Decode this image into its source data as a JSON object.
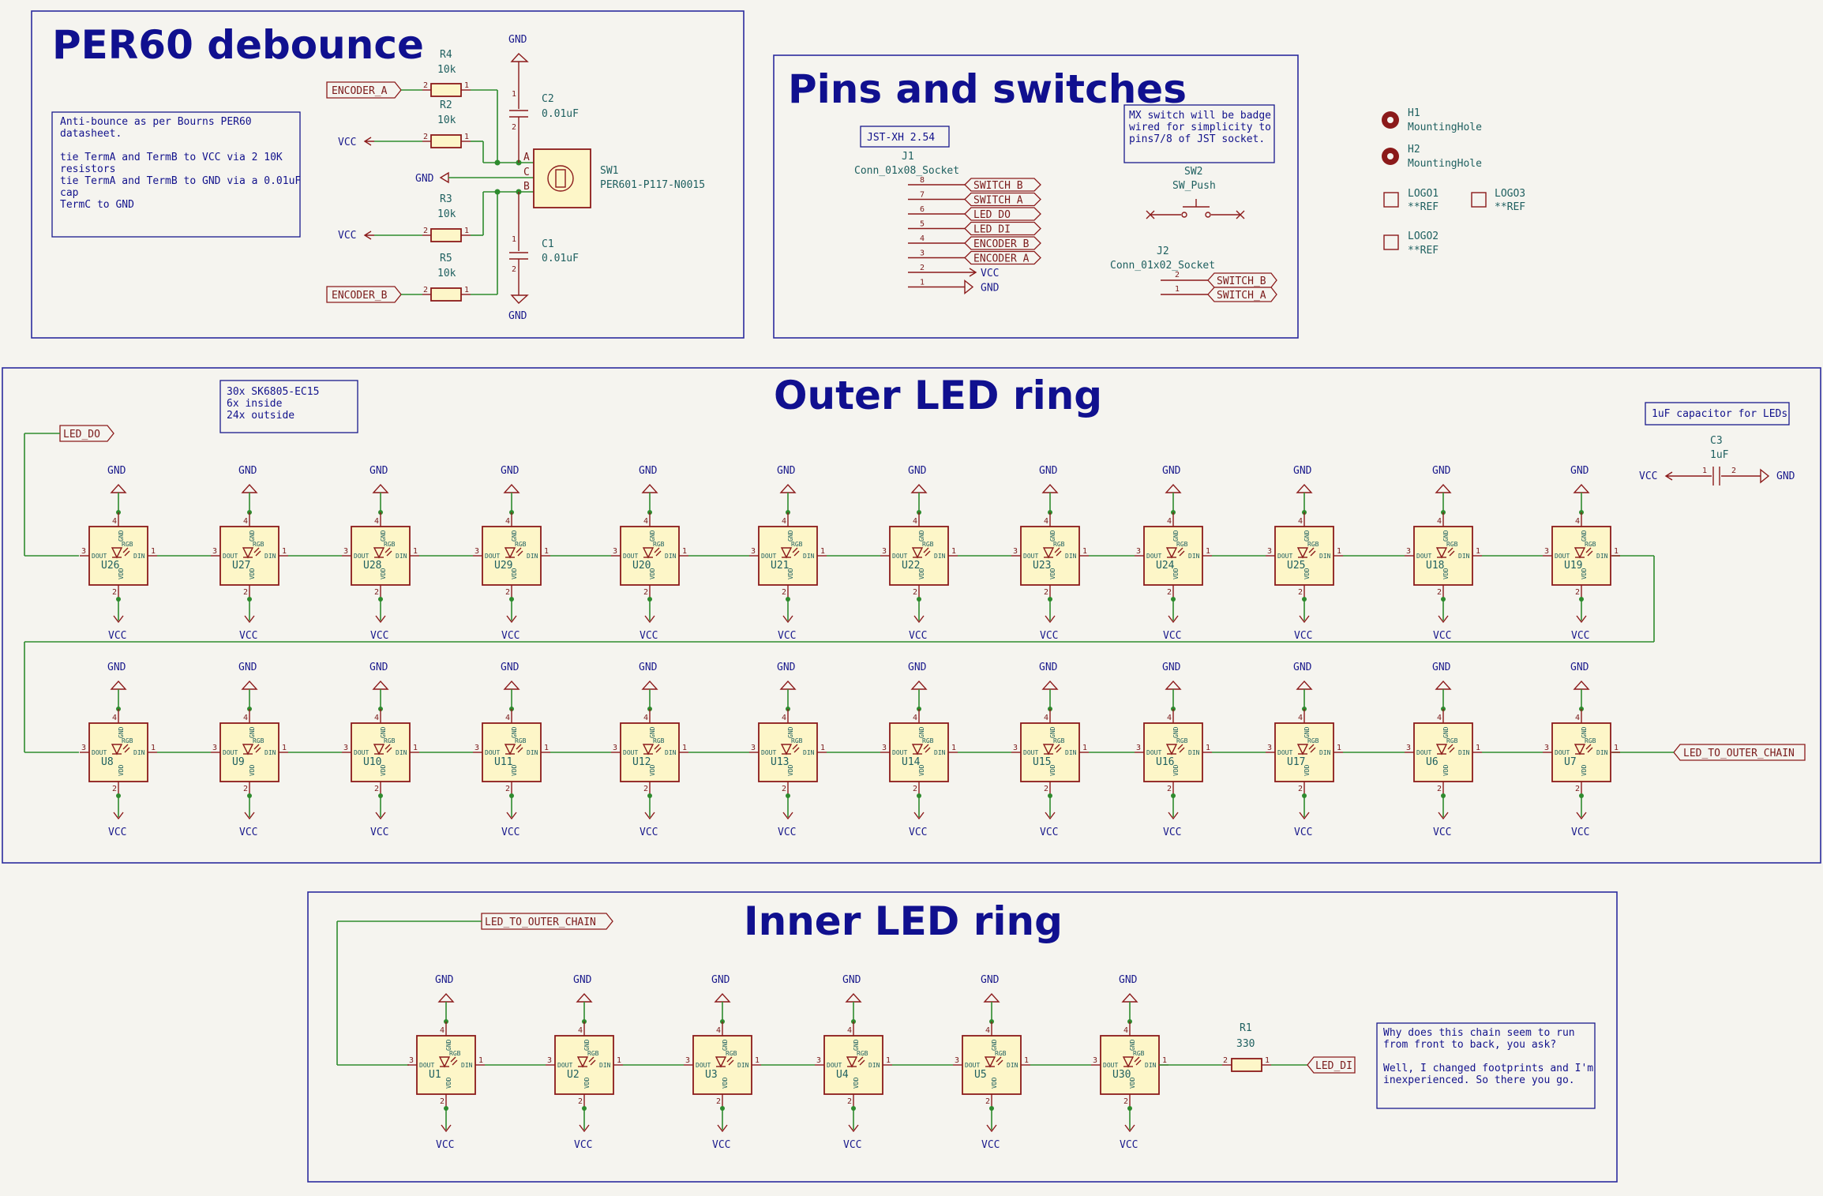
{
  "sections": {
    "debounce_title": "PER60 debounce",
    "pins_title": "Pins and switches",
    "outer_title": "Outer LED ring",
    "inner_title": "Inner LED ring"
  },
  "notes": {
    "debounce": [
      "Anti-bounce as per Bourns PER60",
      "datasheet.",
      "",
      "tie TermA and TermB to VCC via 2 10K",
      "resistors",
      "tie TermA and TermB to GND via a 0.01uF",
      "cap",
      "TermC to GND"
    ],
    "jst": [
      "JST-XH 2.54"
    ],
    "mx": [
      "MX switch will be badge",
      "wired for simplicity to",
      "pins7/8 of JST socket."
    ],
    "led_count": [
      "30x SK6805-EC15",
      "6x inside",
      "24x outside"
    ],
    "cap": [
      "1uF capacitor for LEDs"
    ],
    "chain": [
      "Why does this chain seem to run",
      "from front to back, you ask?",
      "",
      "Well, I changed footprints and I'm",
      "inexperienced.  So there you go."
    ]
  },
  "power": {
    "gnd": "GND",
    "vcc": "VCC"
  },
  "labels": {
    "encoder_a": "ENCODER_A",
    "encoder_b": "ENCODER_B",
    "switch_a": "SWITCH_A",
    "switch_b": "SWITCH_B",
    "led_do": "LED_DO",
    "led_di": "LED_DI",
    "led_to_outer_chain": "LED_TO_OUTER_CHAIN"
  },
  "components": {
    "r4": {
      "ref": "R4",
      "value": "10k"
    },
    "r2": {
      "ref": "R2",
      "value": "10k"
    },
    "r3": {
      "ref": "R3",
      "value": "10k"
    },
    "r5": {
      "ref": "R5",
      "value": "10k"
    },
    "r1": {
      "ref": "R1",
      "value": "330"
    },
    "c2": {
      "ref": "C2",
      "value": "0.01uF"
    },
    "c1": {
      "ref": "C1",
      "value": "0.01uF"
    },
    "c3": {
      "ref": "C3",
      "value": "1uF"
    },
    "sw1": {
      "ref": "SW1",
      "value": "PER601-P117-N0015",
      "pins": [
        "A",
        "C",
        "B"
      ]
    },
    "sw2": {
      "ref": "SW2",
      "value": "SW_Push"
    },
    "j1": {
      "ref": "J1",
      "value": "Conn_01x08_Socket",
      "pins": [
        "8",
        "7",
        "6",
        "5",
        "4",
        "3",
        "2",
        "1"
      ]
    },
    "j2": {
      "ref": "J2",
      "value": "Conn_01x02_Socket",
      "pins": [
        "2",
        "1"
      ]
    },
    "h1": {
      "ref": "H1",
      "value": "MountingHole"
    },
    "h2": {
      "ref": "H2",
      "value": "MountingHole"
    },
    "logo1": {
      "ref": "LOGO1",
      "value": "**REF"
    },
    "logo2": {
      "ref": "LOGO2",
      "value": "**REF"
    },
    "logo3": {
      "ref": "LOGO3",
      "value": "**REF"
    }
  },
  "led_pins": {
    "dout": "DOUT",
    "din": "DIN",
    "vdd": "VDD",
    "gnd": "GND",
    "rgb": "RGB"
  },
  "leds": {
    "outer_top": [
      "U26",
      "U27",
      "U28",
      "U29",
      "U20",
      "U21",
      "U22",
      "U23",
      "U24",
      "U25",
      "U18",
      "U19"
    ],
    "outer_bottom": [
      "U8",
      "U9",
      "U10",
      "U11",
      "U12",
      "U13",
      "U14",
      "U15",
      "U16",
      "U17",
      "U6",
      "U7"
    ],
    "inner": [
      "U1",
      "U2",
      "U3",
      "U4",
      "U5",
      "U30"
    ]
  },
  "pin_numbers": {
    "one": "1",
    "two": "2",
    "three": "3",
    "four": "4"
  }
}
